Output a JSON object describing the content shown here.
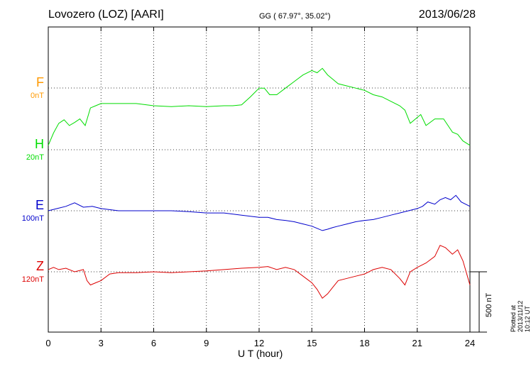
{
  "header": {
    "title": "Lovozero (LOZ)  [AARI]",
    "coord": "GG ( 67.97°,  35.02°)",
    "date": "2013/06/28"
  },
  "footer": {
    "plotted": "Plotted at 2013/11/12 10:12 UT"
  },
  "chart_data": {
    "type": "line",
    "xlabel": "U T (hour)",
    "xlim": [
      0,
      24
    ],
    "xticks": [
      "0",
      "3",
      "6",
      "9",
      "12",
      "15",
      "18",
      "21",
      "24"
    ],
    "scale_bar": "500 nT",
    "grid": true,
    "components": [
      {
        "letter": "F",
        "offset": "0nT",
        "color": "#ff9900",
        "has_trace": false
      },
      {
        "letter": "H",
        "offset": "20nT",
        "color": "#00dd00",
        "has_trace": true
      },
      {
        "letter": "E",
        "offset": "100nT",
        "color": "#0000cc",
        "has_trace": true
      },
      {
        "letter": "Z",
        "offset": "120nT",
        "color": "#dd0000",
        "has_trace": true
      }
    ],
    "series": [
      {
        "name": "H",
        "color": "#00dd00",
        "x": [
          0,
          0.3,
          0.6,
          0.9,
          1.2,
          1.5,
          1.8,
          2.1,
          2.4,
          2.7,
          3,
          3.5,
          4,
          5,
          6,
          7,
          8,
          9,
          10,
          10.5,
          11,
          11.5,
          12,
          12.3,
          12.6,
          13,
          13.5,
          14,
          14.5,
          15,
          15.3,
          15.6,
          15.9,
          16.2,
          16.5,
          17,
          17.5,
          18,
          18.5,
          19,
          19.5,
          20,
          20.3,
          20.6,
          20.9,
          21.2,
          21.5,
          22,
          22.5,
          23,
          23.3,
          23.6,
          24
        ],
        "y": [
          10,
          38,
          60,
          68,
          55,
          62,
          70,
          55,
          95,
          100,
          105,
          105,
          105,
          105,
          100,
          98,
          100,
          98,
          100,
          100,
          102,
          120,
          140,
          140,
          125,
          125,
          140,
          155,
          170,
          180,
          175,
          185,
          170,
          160,
          150,
          145,
          140,
          135,
          125,
          120,
          110,
          100,
          90,
          60,
          70,
          80,
          55,
          70,
          70,
          40,
          35,
          20,
          10
        ]
      },
      {
        "name": "E",
        "color": "#0000cc",
        "x": [
          0,
          0.5,
          1,
          1.5,
          2,
          2.5,
          3,
          4,
          5,
          6,
          7,
          8,
          9,
          10,
          11,
          12,
          12.5,
          13,
          13.5,
          14,
          14.5,
          15,
          15.3,
          15.6,
          15.9,
          16.2,
          16.5,
          17,
          17.5,
          18,
          18.5,
          19,
          19.5,
          20,
          20.5,
          21,
          21.3,
          21.6,
          22,
          22.3,
          22.6,
          22.9,
          23.2,
          23.5,
          24
        ],
        "y": [
          0,
          5,
          10,
          18,
          8,
          10,
          5,
          0,
          0,
          0,
          0,
          -2,
          -5,
          -5,
          -10,
          -15,
          -15,
          -20,
          -22,
          -25,
          -30,
          -35,
          -40,
          -45,
          -42,
          -38,
          -35,
          -30,
          -25,
          -22,
          -20,
          -15,
          -10,
          -5,
          0,
          5,
          10,
          20,
          15,
          25,
          30,
          25,
          35,
          20,
          10
        ]
      },
      {
        "name": "Z",
        "color": "#dd0000",
        "x": [
          0,
          0.3,
          0.6,
          1,
          1.5,
          2,
          2.2,
          2.4,
          2.7,
          3,
          3.5,
          4,
          5,
          6,
          7,
          8,
          9,
          10,
          11,
          12,
          12.5,
          13,
          13.5,
          14,
          14.5,
          15,
          15.3,
          15.6,
          15.9,
          16.2,
          16.5,
          17,
          17.5,
          18,
          18.5,
          19,
          19.5,
          20,
          20.3,
          20.6,
          21,
          21.5,
          22,
          22.3,
          22.6,
          23,
          23.3,
          23.6,
          24
        ],
        "y": [
          5,
          10,
          5,
          8,
          0,
          5,
          -20,
          -30,
          -25,
          -20,
          -5,
          -2,
          -2,
          0,
          -2,
          0,
          2,
          5,
          8,
          10,
          12,
          5,
          10,
          5,
          -10,
          -25,
          -40,
          -60,
          -50,
          -35,
          -20,
          -15,
          -10,
          -5,
          5,
          10,
          5,
          -15,
          -30,
          0,
          10,
          20,
          35,
          60,
          55,
          40,
          50,
          25,
          -30
        ]
      }
    ]
  }
}
